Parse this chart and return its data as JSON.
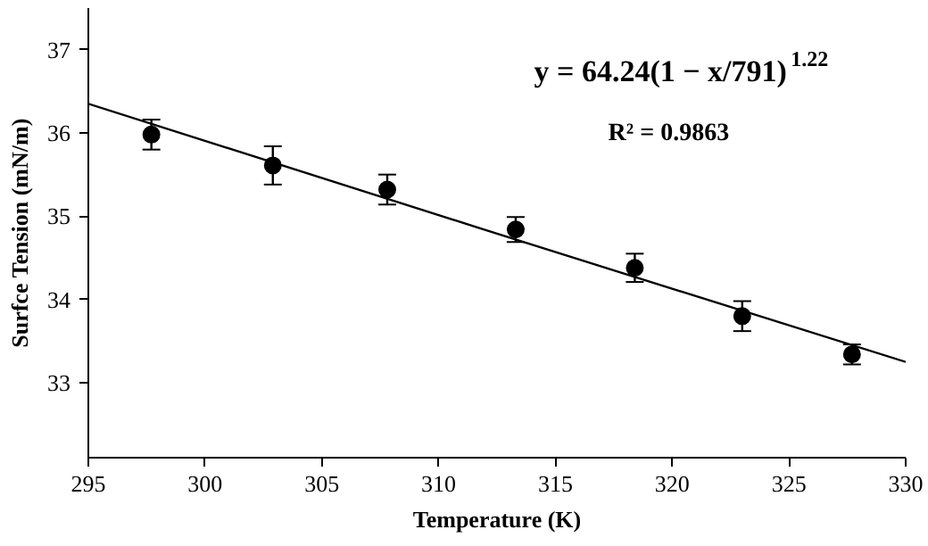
{
  "chart_data": {
    "type": "scatter",
    "xlabel": "Temperature (K)",
    "ylabel": "Surfce Tension (mN/m)",
    "xlim": [
      295,
      330
    ],
    "xticks": [
      295,
      300,
      305,
      310,
      315,
      320,
      325,
      330
    ],
    "ylim": [
      32.1,
      37.5
    ],
    "yticks": [
      33,
      34,
      35,
      36,
      37
    ],
    "grid": false,
    "marker": "circle",
    "annotations": [
      "y = 64.24(1 − x/791)$^{1.22}$",
      "R² = 0.9863"
    ],
    "series": [
      {
        "color": "#000000",
        "x": [
          297.7,
          302.9,
          307.8,
          313.3,
          318.4,
          323.0,
          327.7
        ],
        "values": [
          35.98,
          35.61,
          35.32,
          34.84,
          34.38,
          33.8,
          33.34
        ],
        "errors": [
          0.18,
          0.23,
          0.18,
          0.15,
          0.17,
          0.18,
          0.12
        ]
      },
      {
        "type": "line",
        "color": "#000000",
        "x": [
          295,
          312.5,
          330
        ],
        "values": [
          36.35,
          34.79,
          33.25
        ],
        "line_style": "solid",
        "marker": "none"
      }
    ]
  }
}
